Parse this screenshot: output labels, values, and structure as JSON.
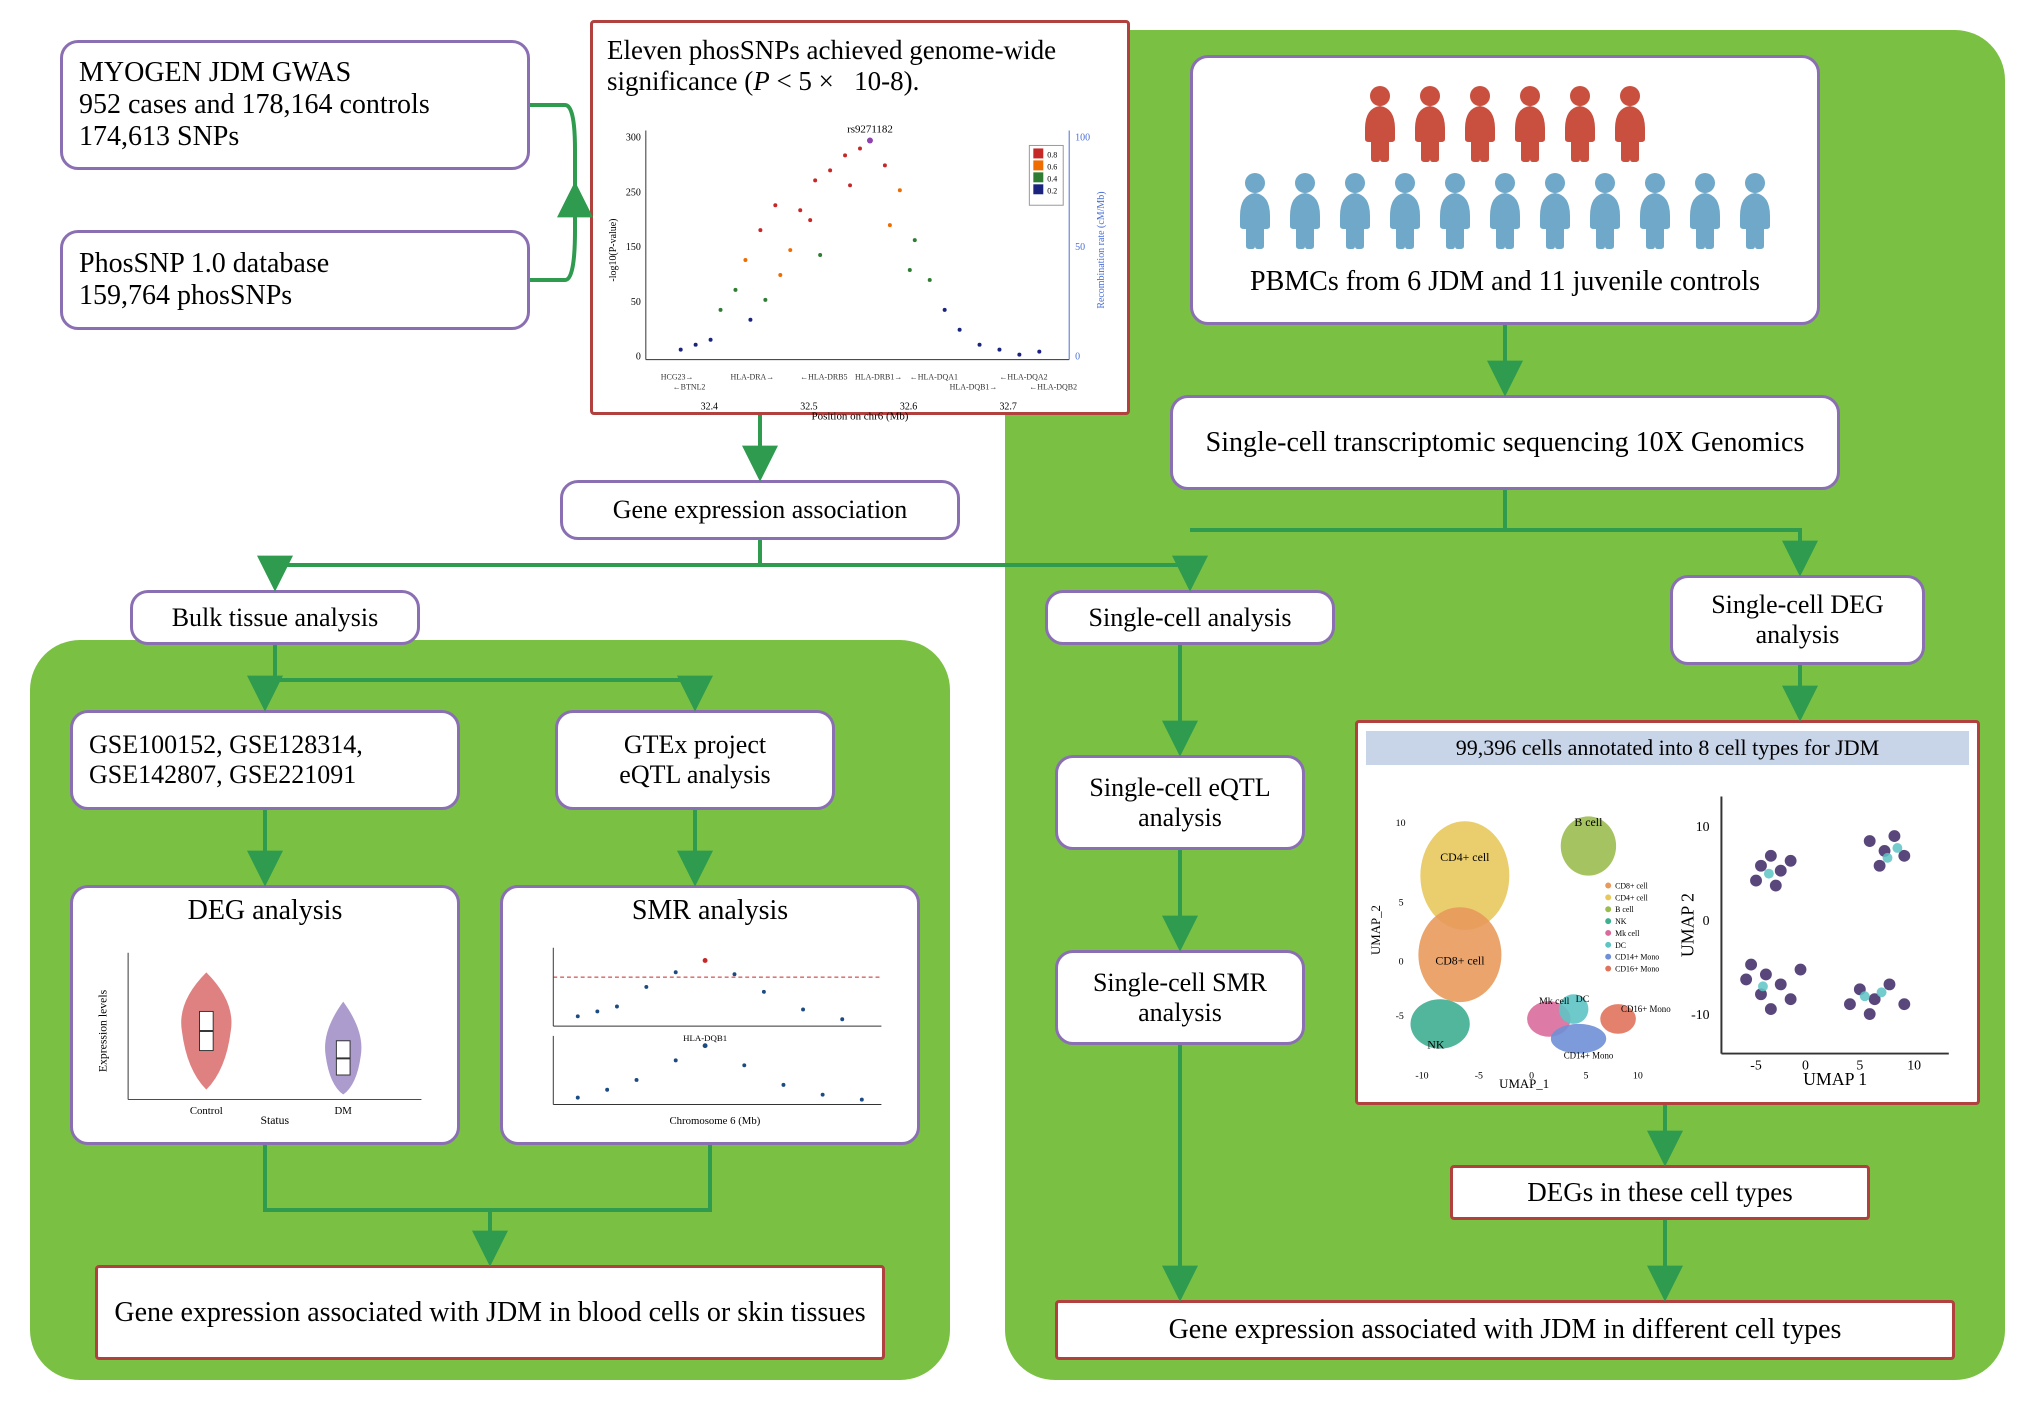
{
  "colors": {
    "panel_green": "#7ac143",
    "box_border": "#8b6fb3",
    "red_border": "#b0413e",
    "arrow": "#2e9b4f",
    "person_case": "#c94f3f",
    "person_ctrl": "#6fa8c8",
    "umap_header_bg": "#c8d4e8"
  },
  "top_left": {
    "gwas": {
      "line1": "MYOGEN JDM GWAS",
      "line2": "952 cases and 178,164 controls",
      "line3": "174,613 SNPs"
    },
    "phossnp": {
      "line1": "PhosSNP 1.0 database",
      "line2": "159,764 phosSNPs"
    }
  },
  "manhattan": {
    "title": "Eleven phosSNPs achieved genome-wide significance (P < 5 ×   10-8).",
    "xlabel": "Position on chr6 (Mb)",
    "ylabel_left": "-log10(P-value)",
    "ylabel_right": "Recombination rate (cM/Mb)",
    "xlim": [
      32.3,
      32.8
    ],
    "ylim_left": [
      0,
      300
    ],
    "ylim_right": [
      0,
      100
    ],
    "lead_snp": "rs9271182",
    "gene_track": [
      "HCG23",
      "BTNL2",
      "HLA-DRA",
      "HLA-DRB5",
      "HLA-DRB1",
      "HLA-DQA1",
      "HLA-DQB1",
      "HLA-DQA2",
      "HLA-DQB2"
    ],
    "ld_legend": [
      0.2,
      0.4,
      0.6,
      0.8
    ],
    "ld_colors": [
      "#1a237e",
      "#2e7d32",
      "#ef6c00",
      "#c62828"
    ]
  },
  "pbmc": {
    "label": "PBMCs from 6 JDM and 11 juvenile controls",
    "n_cases": 6,
    "n_controls": 11
  },
  "scseq": {
    "label": "Single-cell transcriptomic sequencing 10X Genomics"
  },
  "gene_expr_assoc": {
    "label": "Gene expression association"
  },
  "bulk_label": "Bulk tissue analysis",
  "single_label": "Single-cell analysis",
  "bulk_panel": {
    "gse": {
      "line1": "GSE100152, GSE128314,",
      "line2": "GSE142807, GSE221091"
    },
    "gtex": {
      "line1": "GTEx project",
      "line2": "eQTL analysis"
    },
    "deg": {
      "title": "DEG analysis",
      "xlabel": "Status",
      "ylabel": "Expression levels",
      "categories": [
        "Control",
        "DM"
      ],
      "colors": [
        "#d96b6b",
        "#9d8bc4"
      ]
    },
    "smr": {
      "title": "SMR analysis",
      "xlabel": "Chromosome 6 (Mb)",
      "gene_ref": "HLA-DQB1"
    },
    "result": "Gene expression associated with JDM in blood cells or skin tissues"
  },
  "sc_panel": {
    "sc_deg_label": "Single-cell DEG analysis",
    "sc_eqtl_label": "Single-cell eQTL analysis",
    "sc_smr_label": "Single-cell SMR analysis",
    "umap_title": "99,396 cells annotated into 8 cell types for JDM",
    "umap1": {
      "xlabel": "UMAP_1",
      "ylabel": "UMAP_2",
      "xlim": [
        -10,
        10
      ],
      "ylim": [
        -10,
        10
      ],
      "celltypes": [
        "CD8+ cell",
        "CD4+ cell",
        "B cell",
        "NK",
        "Mk cell",
        "DC",
        "CD14+ Mono",
        "CD16+ Mono"
      ],
      "celltype_colors": [
        "#e89a5c",
        "#e8c85c",
        "#9bbd4f",
        "#3fae91",
        "#d96b9b",
        "#5ec4c4",
        "#6f8fd6",
        "#e0735c"
      ]
    },
    "umap2": {
      "xlabel": "UMAP 1",
      "ylabel": "UMAP 2",
      "xticks": [
        -5,
        0,
        5,
        10
      ],
      "yticks": [
        -10,
        0,
        10
      ],
      "point_colors": [
        "#3d2866",
        "#5ec4c4"
      ]
    },
    "degs_label": "DEGs in these cell types",
    "result": "Gene expression associated with JDM in different cell types"
  }
}
